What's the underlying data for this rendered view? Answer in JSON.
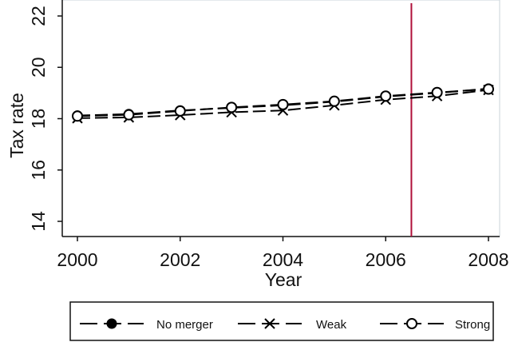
{
  "chart_data": {
    "type": "line",
    "xlabel": "Year",
    "ylabel": "Tax rate",
    "xlim": [
      2000,
      2008
    ],
    "ylim": [
      13.8,
      22.3
    ],
    "x_ticks": [
      2000,
      2002,
      2004,
      2006,
      2008
    ],
    "y_ticks": [
      14,
      16,
      18,
      20,
      22
    ],
    "x": [
      2000,
      2001,
      2002,
      2003,
      2004,
      2005,
      2006,
      2007,
      2008
    ],
    "series": [
      {
        "name": "No merger",
        "marker": "filled-circle",
        "color": "#000000",
        "values": [
          18.12,
          18.18,
          18.32,
          18.42,
          18.52,
          18.66,
          18.86,
          19.0,
          19.17
        ]
      },
      {
        "name": "Weak",
        "marker": "x",
        "color": "#000000",
        "values": [
          18.02,
          18.05,
          18.14,
          18.25,
          18.32,
          18.52,
          18.74,
          18.88,
          19.12
        ]
      },
      {
        "name": "Strong",
        "marker": "hollow-circle",
        "color": "#000000",
        "values": [
          18.1,
          18.15,
          18.3,
          18.44,
          18.55,
          18.68,
          18.88,
          19.02,
          19.15
        ]
      }
    ],
    "vertical_line": {
      "x": 2006.5,
      "color": "#b0103a"
    },
    "grid": false,
    "legend_position": "bottom"
  }
}
